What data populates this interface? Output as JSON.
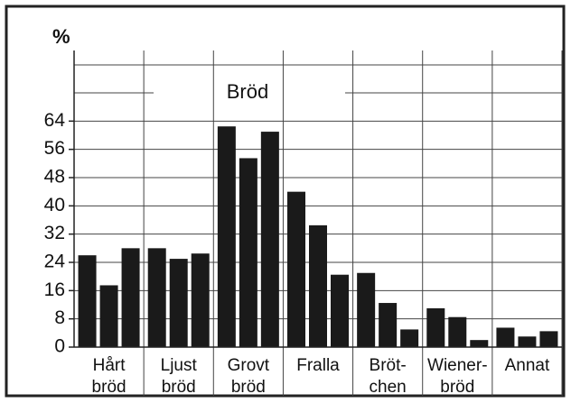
{
  "chart_data": {
    "type": "bar",
    "title": "Bröd",
    "y_label": "%",
    "categories": [
      "Hårt\nbröd",
      "Ljust\nbröd",
      "Grovt\nbröd",
      "Fralla",
      "Bröt-\nchen",
      "Wiener-\nbröd",
      "Annat"
    ],
    "series": [
      {
        "color": "#1a1a1a",
        "values": [
          26,
          28,
          62.5,
          44,
          21,
          11,
          5.5
        ]
      },
      {
        "color": "#1a1a1a",
        "values": [
          17.5,
          25,
          53.5,
          34.5,
          12.5,
          8.5,
          3
        ]
      },
      {
        "color": "#1a1a1a",
        "values": [
          28,
          26.5,
          61,
          20.5,
          5,
          2,
          4.5
        ]
      }
    ],
    "ylim": [
      0,
      84
    ],
    "yticks": [
      0,
      8,
      16,
      24,
      32,
      40,
      48,
      56,
      64
    ],
    "grid": true
  }
}
